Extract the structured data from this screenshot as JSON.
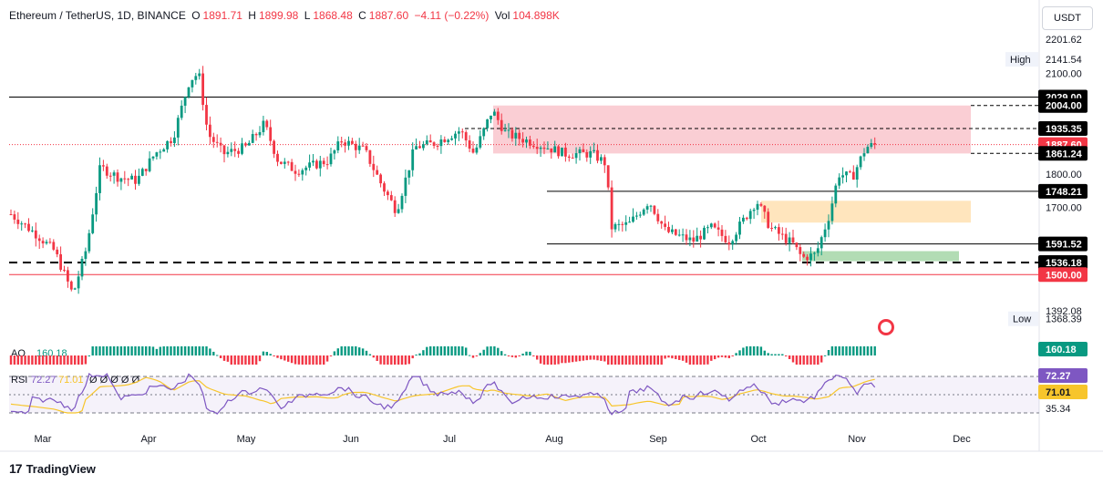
{
  "header": {
    "symbol": "Ethereum / TetherUS, 1D, BINANCE",
    "open_label": "O",
    "open": "1891.71",
    "high_label": "H",
    "high": "1899.98",
    "low_label": "L",
    "low": "1868.48",
    "close_label": "C",
    "close": "1887.60",
    "change": "−4.11 (−0.22%)",
    "vol_label": "Vol",
    "vol": "104.898K"
  },
  "currency_button": "USDT",
  "brand": "TradingView",
  "colors": {
    "up": "#089981",
    "down": "#f23645",
    "rsi_line": "#7e57c2",
    "rsi_ma": "#f7c52b",
    "supply_zone": "#f9c6cc",
    "demand_zone_orange": "#ffe0b2",
    "demand_zone_green": "#a5d6a7"
  },
  "chart_data": {
    "type": "candlestick",
    "y_axis_labels": [
      "2201.62",
      "2100.00",
      "1800.00",
      "1700.00",
      "1392.08"
    ],
    "x_axis_labels": [
      "Mar",
      "Apr",
      "May",
      "Jun",
      "Jul",
      "Aug",
      "Sep",
      "Oct",
      "Nov",
      "Dec"
    ],
    "markers": {
      "high": {
        "label": "High",
        "value": "2141.54"
      },
      "low": {
        "label": "Low",
        "value": "1368.39"
      }
    },
    "level_badges": [
      "2029.00",
      "2004.00",
      "1935.35",
      "1887.60",
      "1861.24",
      "1748.21",
      "1591.52",
      "1536.18",
      "1500.00"
    ],
    "candles_close_start": 1680,
    "ylim": [
      1330,
      2240
    ],
    "ao": {
      "label": "AO",
      "value": "160.18"
    },
    "rsi": {
      "label": "RSI",
      "value": "72.27",
      "ma_value": "71.01",
      "ma_label": "71.01",
      "placeholder": "Ø Ø Ø Ø Ø",
      "levels": [
        "70",
        "50",
        "30"
      ],
      "extra_value": "35.34"
    }
  }
}
